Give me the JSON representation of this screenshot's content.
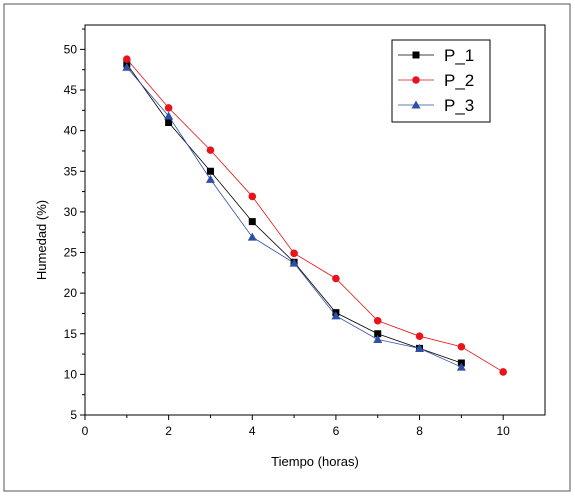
{
  "chart_data": {
    "type": "line",
    "xlabel": "Tiempo (horas)",
    "ylabel": "Humedad (%)",
    "xlim": [
      0,
      11
    ],
    "ylim": [
      5,
      53
    ],
    "xticks": [
      0,
      2,
      4,
      6,
      8,
      10
    ],
    "yticks": [
      5,
      10,
      15,
      20,
      25,
      30,
      35,
      40,
      45,
      50
    ],
    "grid": false,
    "legend_position": "top-right",
    "series": [
      {
        "name": "P_1",
        "color": "#000000",
        "marker": "square",
        "x": [
          1,
          2,
          3,
          4,
          5,
          6,
          7,
          8,
          9
        ],
        "values": [
          48.2,
          41.0,
          35.0,
          28.8,
          23.8,
          17.6,
          15.0,
          13.2,
          11.4
        ]
      },
      {
        "name": "P_2",
        "color": "#e8131b",
        "marker": "circle",
        "x": [
          1,
          2,
          3,
          4,
          5,
          6,
          7,
          8,
          9,
          10
        ],
        "values": [
          48.8,
          42.8,
          37.6,
          31.9,
          24.9,
          21.8,
          16.6,
          14.7,
          13.4,
          10.3
        ]
      },
      {
        "name": "P_3",
        "color": "#2e4fa6",
        "marker": "triangle",
        "x": [
          1,
          2,
          3,
          4,
          5,
          6,
          7,
          8,
          9
        ],
        "values": [
          47.8,
          41.8,
          34.0,
          26.9,
          23.7,
          17.2,
          14.3,
          13.2,
          10.9
        ]
      }
    ]
  }
}
